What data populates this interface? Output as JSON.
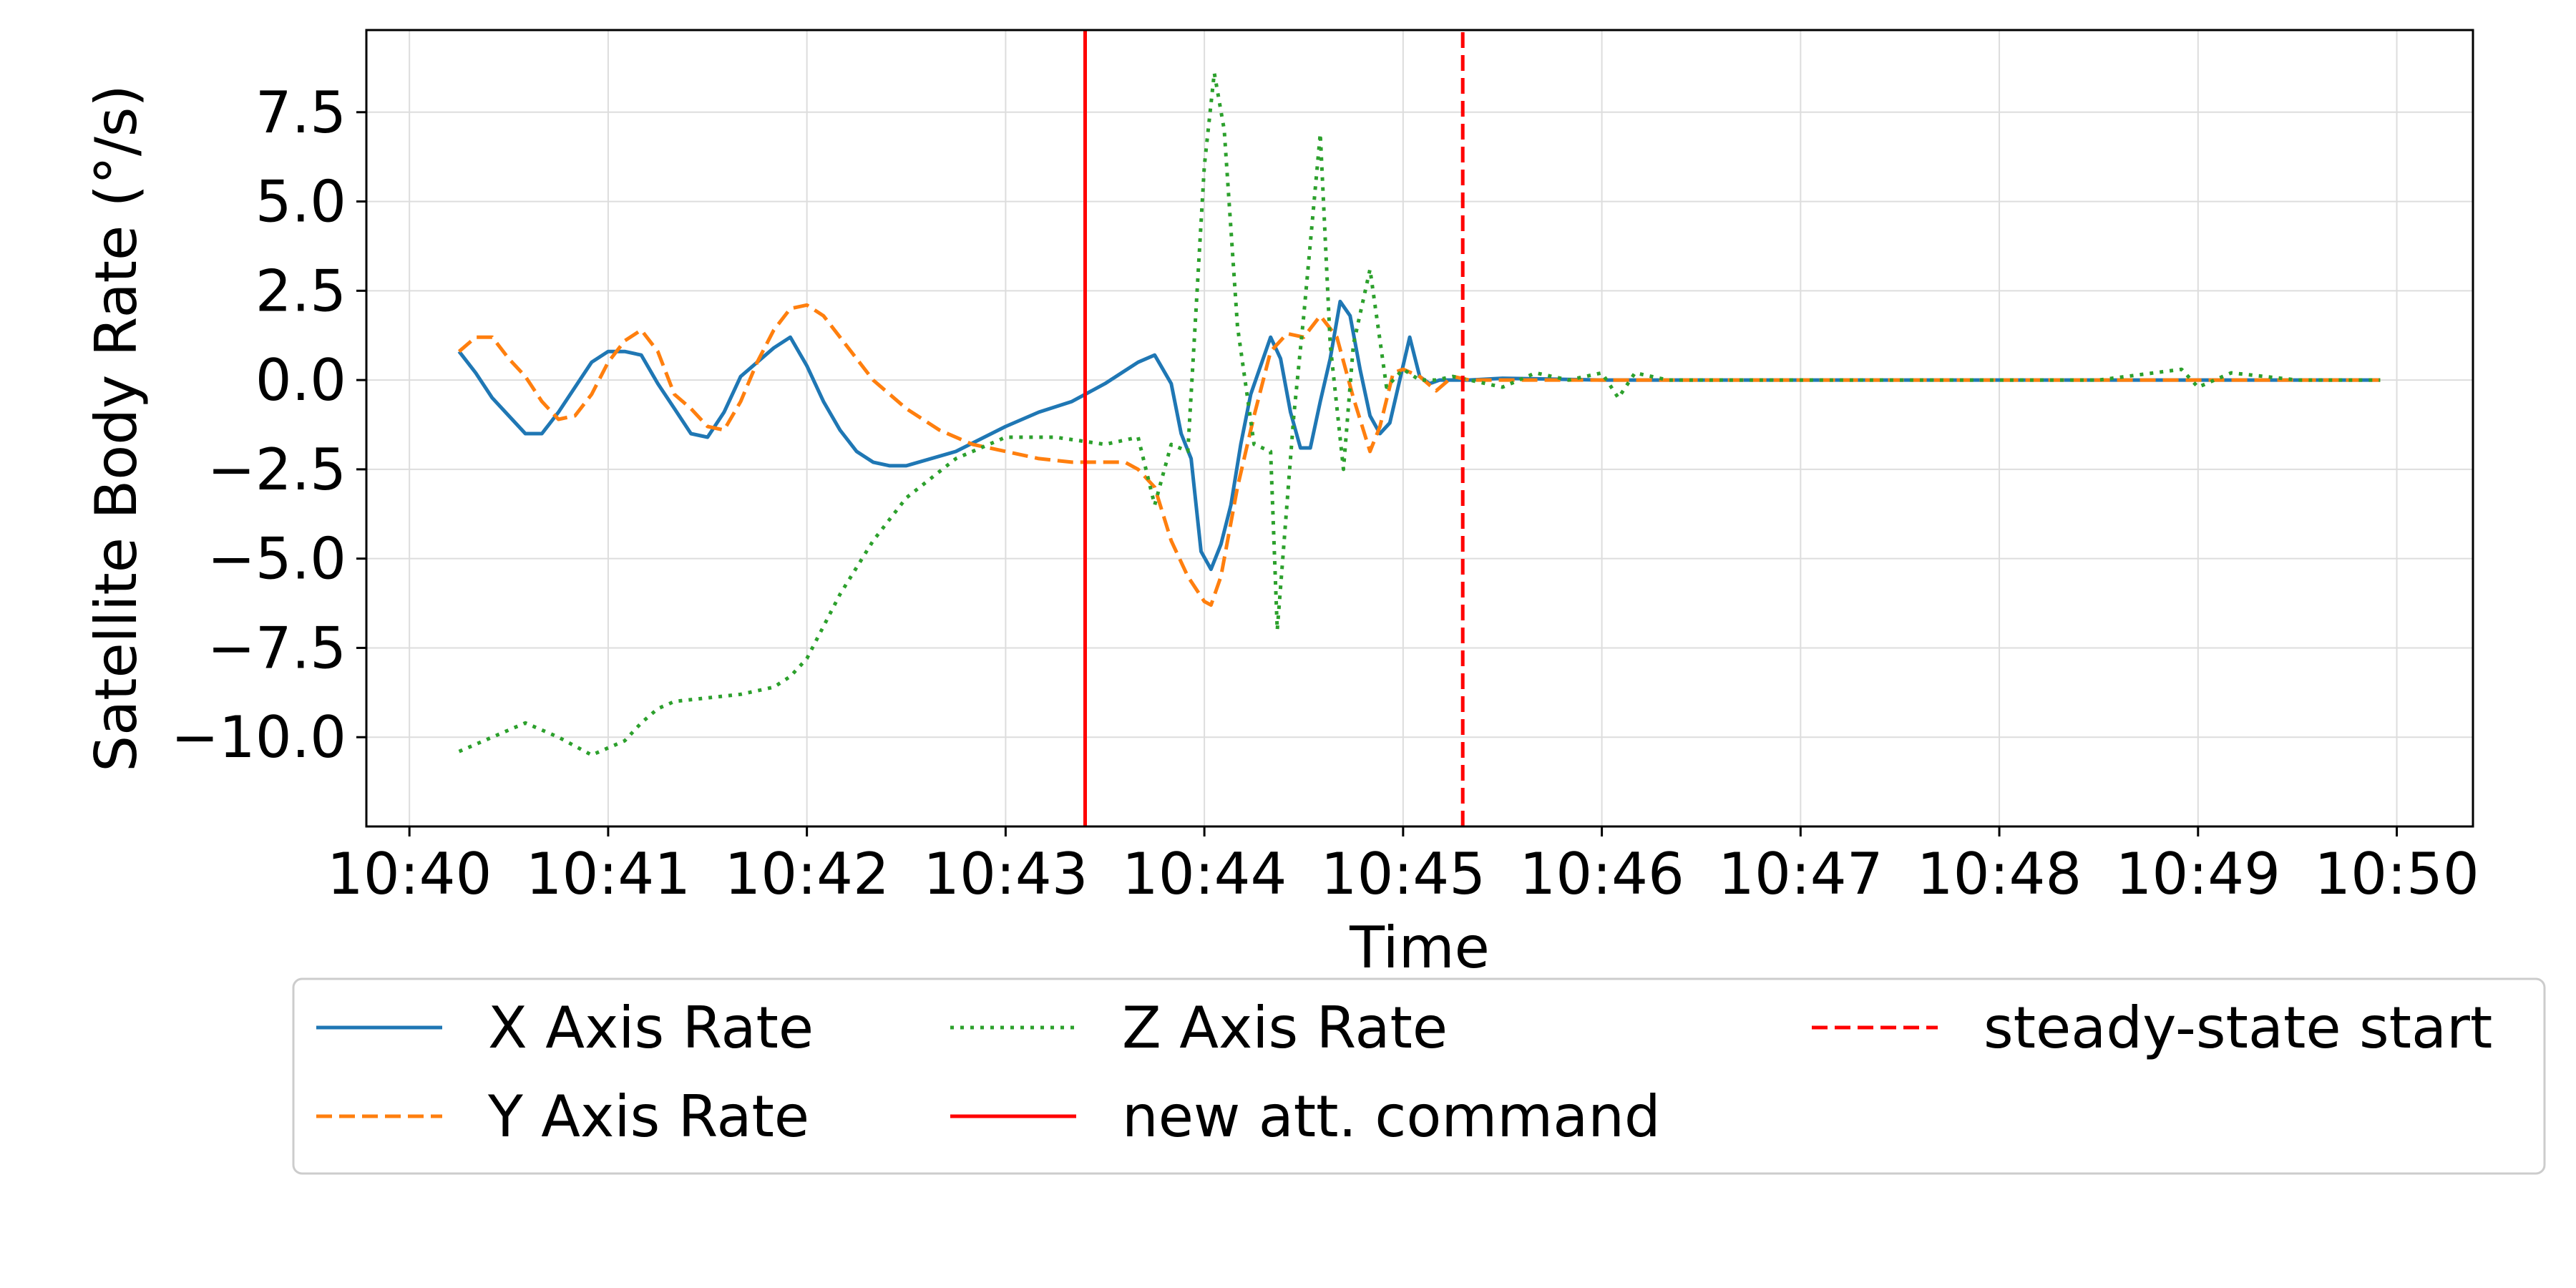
{
  "chart_data": {
    "type": "line",
    "title": "",
    "xlabel": "Time",
    "ylabel": "Satellite Body Rate (°/s)",
    "xlim": [
      "10:39:47",
      "10:50:23"
    ],
    "ylim": [
      -12.5,
      9.8
    ],
    "x_ticks": [
      "10:40",
      "10:41",
      "10:42",
      "10:43",
      "10:44",
      "10:45",
      "10:46",
      "10:47",
      "10:48",
      "10:49",
      "10:50"
    ],
    "y_ticks": [
      -10.0,
      -7.5,
      -5.0,
      -2.5,
      0.0,
      2.5,
      5.0,
      7.5
    ],
    "y_tick_labels": [
      "−10.0",
      "−7.5",
      "−5.0",
      "−2.5",
      "0.0",
      "2.5",
      "5.0",
      "7.5"
    ],
    "grid": true,
    "legend_position": "below",
    "series": [
      {
        "name": "X Axis Rate",
        "color": "#1f77b4",
        "style": "solid",
        "x": [
          "10:40:15",
          "10:40:20",
          "10:40:25",
          "10:40:30",
          "10:40:35",
          "10:40:40",
          "10:40:45",
          "10:40:50",
          "10:40:55",
          "10:41:00",
          "10:41:05",
          "10:41:10",
          "10:41:15",
          "10:41:20",
          "10:41:25",
          "10:41:30",
          "10:41:35",
          "10:41:40",
          "10:41:45",
          "10:41:50",
          "10:41:55",
          "10:42:00",
          "10:42:05",
          "10:42:10",
          "10:42:15",
          "10:42:20",
          "10:42:25",
          "10:42:30",
          "10:42:45",
          "10:43:00",
          "10:43:10",
          "10:43:20",
          "10:43:30",
          "10:43:35",
          "10:43:40",
          "10:43:45",
          "10:43:50",
          "10:43:53",
          "10:43:56",
          "10:43:59",
          "10:44:02",
          "10:44:05",
          "10:44:08",
          "10:44:11",
          "10:44:14",
          "10:44:17",
          "10:44:20",
          "10:44:23",
          "10:44:26",
          "10:44:29",
          "10:44:32",
          "10:44:35",
          "10:44:38",
          "10:44:41",
          "10:44:44",
          "10:44:47",
          "10:44:50",
          "10:44:53",
          "10:44:56",
          "10:44:59",
          "10:45:02",
          "10:45:05",
          "10:45:08",
          "10:45:11",
          "10:45:14",
          "10:45:17",
          "10:45:20",
          "10:45:30",
          "10:46:00",
          "10:46:30",
          "10:47:00",
          "10:47:30",
          "10:48:00",
          "10:48:30",
          "10:49:00",
          "10:49:30",
          "10:49:55"
        ],
        "y": [
          0.8,
          0.2,
          -0.5,
          -1.0,
          -1.5,
          -1.5,
          -0.9,
          -0.2,
          0.5,
          0.8,
          0.8,
          0.7,
          -0.1,
          -0.8,
          -1.5,
          -1.6,
          -0.9,
          0.1,
          0.5,
          0.9,
          1.2,
          0.4,
          -0.6,
          -1.4,
          -2.0,
          -2.3,
          -2.4,
          -2.4,
          -2.0,
          -1.3,
          -0.9,
          -0.6,
          -0.1,
          0.2,
          0.5,
          0.7,
          -0.1,
          -1.5,
          -2.2,
          -4.8,
          -5.3,
          -4.6,
          -3.5,
          -1.8,
          -0.4,
          0.4,
          1.2,
          0.6,
          -0.9,
          -1.9,
          -1.9,
          -0.6,
          0.6,
          2.2,
          1.8,
          0.3,
          -1.0,
          -1.5,
          -1.2,
          0.0,
          1.2,
          0.1,
          -0.1,
          0.0,
          0.0,
          0.0,
          0.0,
          0.05,
          0.0,
          0.0,
          0.0,
          0.0,
          0.0,
          0.0,
          0.0,
          0.0,
          0.0
        ]
      },
      {
        "name": "Y Axis Rate",
        "color": "#ff7f0e",
        "style": "dashed",
        "x": [
          "10:40:15",
          "10:40:20",
          "10:40:25",
          "10:40:30",
          "10:40:35",
          "10:40:40",
          "10:40:45",
          "10:40:50",
          "10:40:55",
          "10:41:00",
          "10:41:05",
          "10:41:10",
          "10:41:15",
          "10:41:20",
          "10:41:25",
          "10:41:30",
          "10:41:35",
          "10:41:40",
          "10:41:45",
          "10:41:50",
          "10:41:55",
          "10:42:00",
          "10:42:05",
          "10:42:10",
          "10:42:15",
          "10:42:20",
          "10:42:30",
          "10:42:40",
          "10:42:50",
          "10:43:00",
          "10:43:10",
          "10:43:20",
          "10:43:30",
          "10:43:36",
          "10:43:40",
          "10:43:45",
          "10:43:50",
          "10:43:55",
          "10:44:00",
          "10:44:02",
          "10:44:05",
          "10:44:10",
          "10:44:15",
          "10:44:20",
          "10:44:25",
          "10:44:30",
          "10:44:35",
          "10:44:40",
          "10:44:45",
          "10:44:50",
          "10:44:53",
          "10:44:57",
          "10:45:00",
          "10:45:05",
          "10:45:10",
          "10:45:15",
          "10:45:20",
          "10:45:30",
          "10:46:00",
          "10:46:30",
          "10:47:00",
          "10:47:30",
          "10:48:00",
          "10:48:30",
          "10:49:00",
          "10:49:30",
          "10:49:55"
        ],
        "y": [
          0.8,
          1.2,
          1.2,
          0.6,
          0.1,
          -0.6,
          -1.1,
          -1.0,
          -0.4,
          0.5,
          1.1,
          1.4,
          0.8,
          -0.4,
          -0.8,
          -1.3,
          -1.4,
          -0.6,
          0.5,
          1.4,
          2.0,
          2.1,
          1.8,
          1.2,
          0.6,
          0.0,
          -0.8,
          -1.4,
          -1.8,
          -2.0,
          -2.2,
          -2.3,
          -2.3,
          -2.3,
          -2.5,
          -3.0,
          -4.5,
          -5.5,
          -6.2,
          -6.3,
          -5.5,
          -3.0,
          -1.0,
          0.8,
          1.3,
          1.2,
          1.8,
          1.2,
          -0.5,
          -2.0,
          -1.3,
          0.2,
          0.3,
          0.1,
          -0.3,
          0.1,
          0.0,
          0.0,
          0.0,
          0.0,
          0.0,
          0.0,
          0.0,
          0.0,
          0.0,
          0.0,
          0.0
        ]
      },
      {
        "name": "Z Axis Rate",
        "color": "#2ca02c",
        "style": "dotted",
        "x": [
          "10:40:15",
          "10:40:25",
          "10:40:35",
          "10:40:45",
          "10:40:55",
          "10:41:05",
          "10:41:10",
          "10:41:15",
          "10:41:20",
          "10:41:30",
          "10:41:40",
          "10:41:50",
          "10:41:55",
          "10:42:00",
          "10:42:10",
          "10:42:20",
          "10:42:30",
          "10:42:45",
          "10:43:00",
          "10:43:15",
          "10:43:30",
          "10:43:40",
          "10:43:45",
          "10:43:50",
          "10:43:55",
          "10:44:00",
          "10:44:03",
          "10:44:06",
          "10:44:10",
          "10:44:15",
          "10:44:20",
          "10:44:22",
          "10:44:27",
          "10:44:30",
          "10:44:35",
          "10:44:38",
          "10:44:42",
          "10:44:45",
          "10:44:50",
          "10:44:55",
          "10:45:00",
          "10:45:05",
          "10:45:10",
          "10:45:15",
          "10:45:20",
          "10:45:30",
          "10:45:40",
          "10:45:50",
          "10:46:00",
          "10:46:05",
          "10:46:10",
          "10:46:20",
          "10:46:40",
          "10:47:00",
          "10:47:30",
          "10:48:00",
          "10:48:30",
          "10:48:55",
          "10:49:00",
          "10:49:10",
          "10:49:30",
          "10:49:55"
        ],
        "y": [
          -10.4,
          -10.0,
          -9.6,
          -10.0,
          -10.5,
          -10.1,
          -9.6,
          -9.2,
          -9.0,
          -8.9,
          -8.8,
          -8.6,
          -8.3,
          -7.8,
          -6.0,
          -4.5,
          -3.3,
          -2.2,
          -1.6,
          -1.6,
          -1.8,
          -1.6,
          -3.5,
          -1.8,
          -2.0,
          6.0,
          8.6,
          7.0,
          1.5,
          -1.8,
          -2.0,
          -7.0,
          -1.0,
          1.8,
          6.9,
          1.0,
          -2.5,
          1.0,
          3.1,
          -0.2,
          0.3,
          0.0,
          0.0,
          0.1,
          0.0,
          -0.2,
          0.2,
          0.0,
          0.2,
          -0.5,
          0.2,
          0.0,
          0.0,
          0.0,
          0.0,
          0.0,
          0.0,
          0.3,
          -0.2,
          0.2,
          0.0,
          0.0
        ]
      },
      {
        "name": "new att. command",
        "color": "#ff0000",
        "style": "solid",
        "x": [
          "10:43:24",
          "10:43:24"
        ],
        "y": [
          -12.5,
          9.8
        ]
      },
      {
        "name": "steady-state start",
        "color": "#ff0000",
        "style": "dashed",
        "x": [
          "10:45:18",
          "10:45:18"
        ],
        "y": [
          -12.5,
          9.8
        ]
      }
    ]
  }
}
